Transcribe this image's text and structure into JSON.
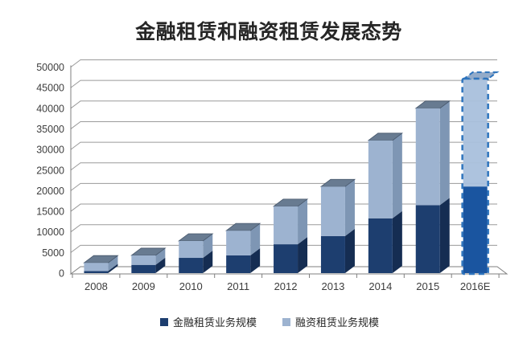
{
  "chart_data": {
    "type": "bar",
    "stacked": true,
    "style": "3d-column",
    "title": "金融租赁和融资租赁发展态势",
    "categories": [
      "2008",
      "2009",
      "2010",
      "2011",
      "2012",
      "2013",
      "2014",
      "2015",
      "2016E"
    ],
    "series": [
      {
        "name": "金融租赁业务规模",
        "color": "#1d3e6f",
        "values": [
          500,
          2000,
          3700,
          4300,
          7000,
          9000,
          13300,
          16500,
          21000
        ]
      },
      {
        "name": "融资租赁业务规模",
        "color": "#9db3d0",
        "values": [
          2000,
          2300,
          4100,
          6000,
          9200,
          12000,
          18900,
          23500,
          26000
        ]
      }
    ],
    "totals": [
      2500,
      4300,
      7800,
      10300,
      16200,
      21000,
      32200,
      40000,
      47000
    ],
    "ylim": [
      0,
      50000
    ],
    "ytick_step": 5000,
    "yticks": [
      0,
      5000,
      10000,
      15000,
      20000,
      25000,
      30000,
      35000,
      40000,
      45000,
      50000
    ],
    "xlabel": "",
    "ylabel": "",
    "grid": true,
    "legend_position": "bottom",
    "forecast_index": 8,
    "forecast_note": "2016E bar drawn with dashed blue outline (estimate)"
  },
  "colors": {
    "series1_front": "#1d3e6f",
    "series1_side": "#152d52",
    "series2_front": "#9db3d0",
    "series2_side": "#7e96b4",
    "top_cap": "#687b91",
    "top_cap_edge": "#46566a",
    "forecast_stroke": "#2e74bd",
    "forecast_fill_light": "#a9c0dc",
    "forecast_fill_dark": "#1a55a0",
    "forecast_cap": "#93abc9",
    "gridline": "#9a9a9a",
    "axis": "#7f7f7f",
    "tick_text": "#3d3d3d"
  }
}
